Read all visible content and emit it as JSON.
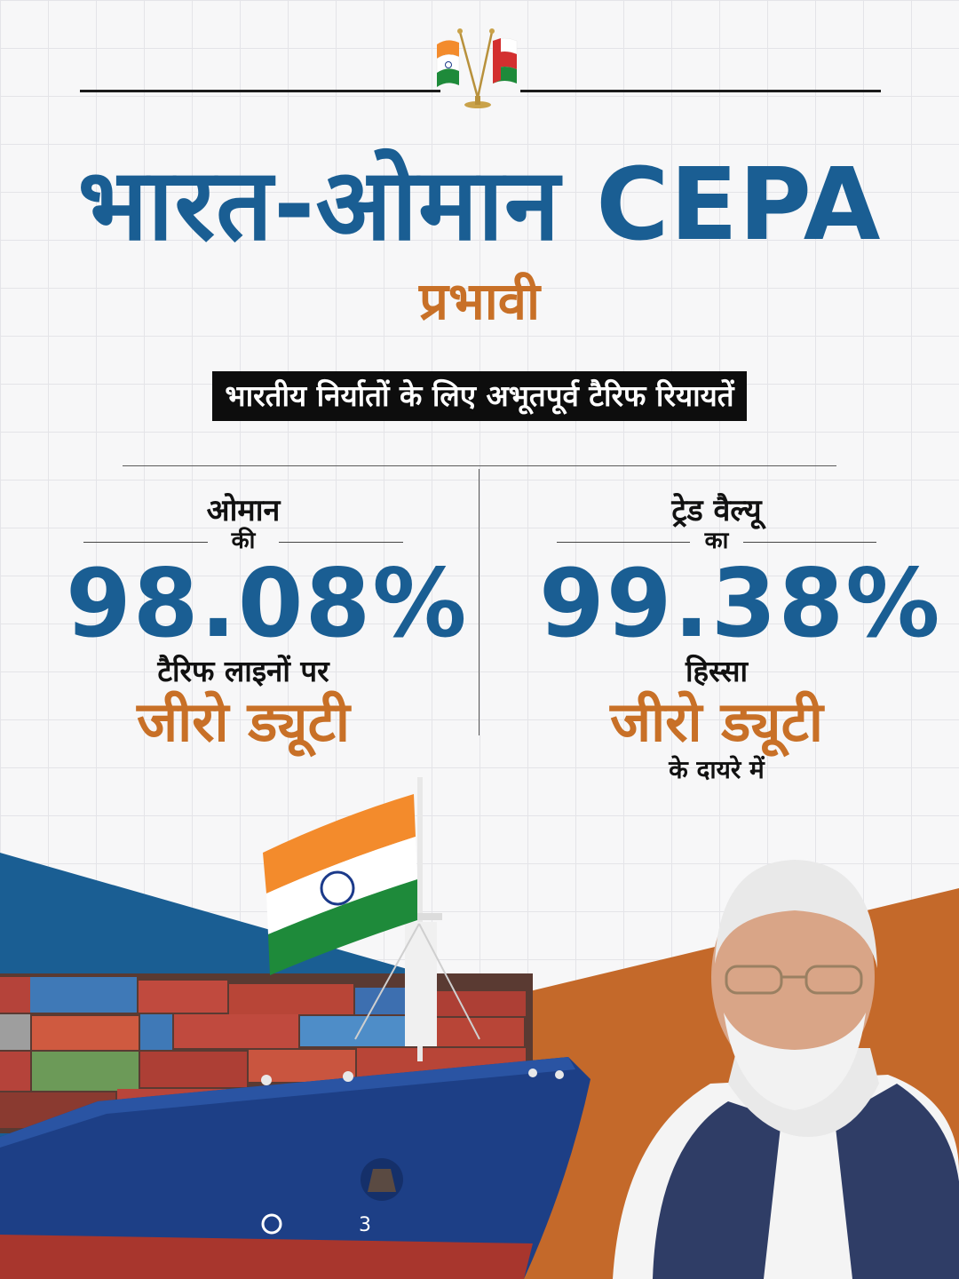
{
  "header": {
    "title": "भारत-ओमान CEPA",
    "subtitle": "प्रभावी",
    "tagline": "भारतीय निर्यातों के लिए अभूतपूर्व टैरिफ रियायतें"
  },
  "stats": [
    {
      "label_top": "ओमान",
      "label_mid": "की",
      "value": "98.08%",
      "label_under": "टैरिफ लाइनों पर",
      "highlight": "जीरो ड्यूटी",
      "label_foot": ""
    },
    {
      "label_top": "ट्रेड वैल्यू",
      "label_mid": "का",
      "value": "99.38%",
      "label_under": "हिस्सा",
      "highlight": "जीरो ड्यूटी",
      "label_foot": "के दायरे में"
    }
  ],
  "colors": {
    "primary_blue": "#1a5e93",
    "accent_saffron": "#c87027",
    "tagline_bg": "#0d0d0d",
    "ship_hull": "#1d3f86",
    "india_saffron": "#f38b2c",
    "india_green": "#1e8a3a",
    "oman_red": "#d32f2f"
  },
  "icons": {
    "flags": "india-oman-desk-flags-icon",
    "ship": "cargo-ship-illustration",
    "portrait": "person-portrait-illustration"
  }
}
